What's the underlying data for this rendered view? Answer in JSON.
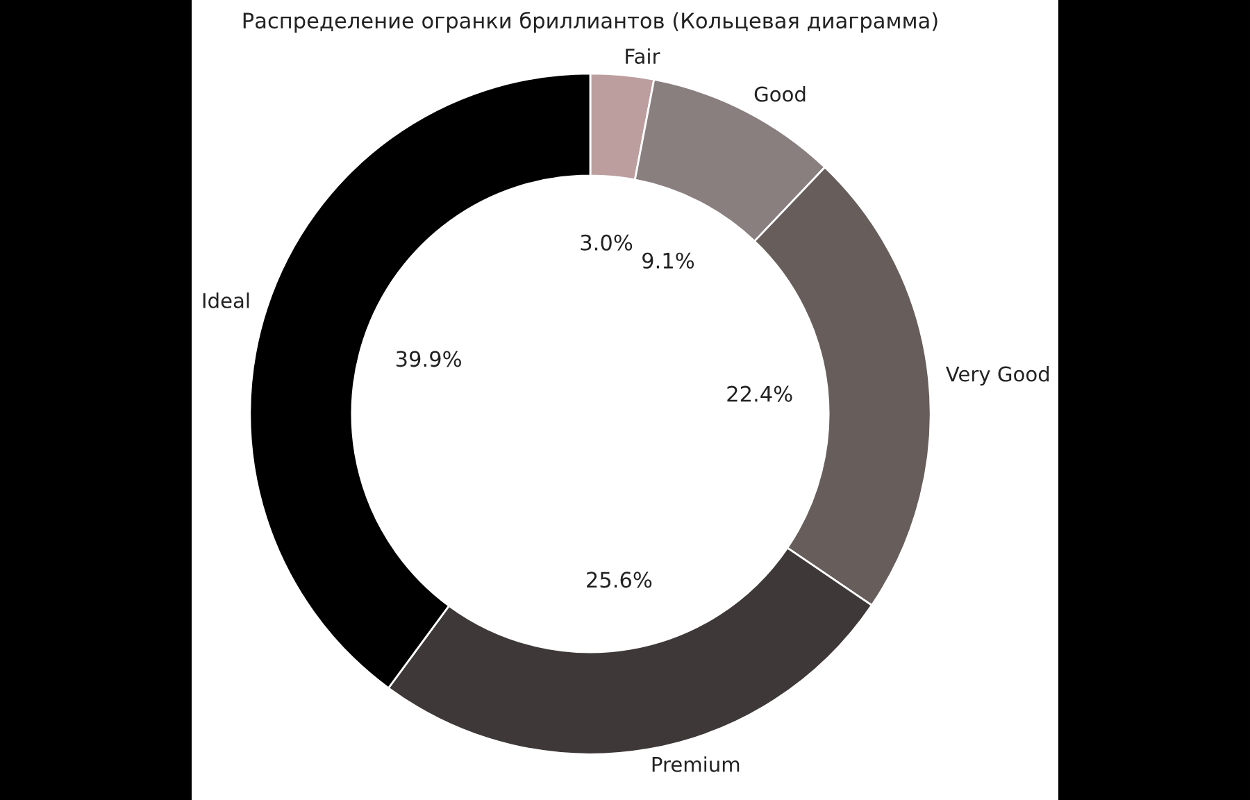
{
  "chart_data": {
    "type": "donut",
    "title": "Распределение огранки бриллиантов (Кольцевая диаграмма)",
    "categories": [
      "Fair",
      "Good",
      "Very Good",
      "Premium",
      "Ideal"
    ],
    "values": [
      3.0,
      9.1,
      22.4,
      25.6,
      39.9
    ],
    "value_labels": [
      "3.0%",
      "9.1%",
      "22.4%",
      "25.6%",
      "39.9%"
    ],
    "colors": [
      "#bc9e9e",
      "#8a7f7f",
      "#675e5c",
      "#3e3838",
      "#000000"
    ],
    "legend": false
  }
}
